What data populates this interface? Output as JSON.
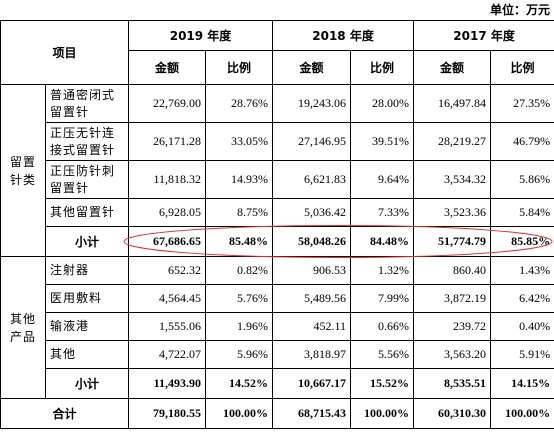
{
  "unit": "单位：万元",
  "header": {
    "item": "项目",
    "years": [
      "2019 年度",
      "2018 年度",
      "2017 年度"
    ],
    "subheaders": [
      "金额",
      "比例",
      "金额",
      "比例",
      "金额",
      "比例"
    ]
  },
  "groups": [
    {
      "label": "留置针类",
      "rows": [
        {
          "item": "普通密闭式留置针",
          "cells": [
            "22,769.00",
            "28.76%",
            "19,243.06",
            "28.00%",
            "16,497.84",
            "27.35%"
          ]
        },
        {
          "item": "正压无针连接式留置针",
          "cells": [
            "26,171.28",
            "33.05%",
            "27,146.95",
            "39.51%",
            "28,219.27",
            "46.79%"
          ]
        },
        {
          "item": "正压防针刺留置针",
          "cells": [
            "11,818.32",
            "14.93%",
            "6,621.83",
            "9.64%",
            "3,534.32",
            "5.86%"
          ]
        },
        {
          "item": "其他留置针",
          "cells": [
            "6,928.05",
            "8.75%",
            "5,036.42",
            "7.33%",
            "3,523.36",
            "5.84%"
          ]
        }
      ],
      "subtotal": {
        "label": "小计",
        "cells": [
          "67,686.65",
          "85.48%",
          "58,048.26",
          "84.48%",
          "51,774.79",
          "85.85%"
        ]
      }
    },
    {
      "label": "其他产品",
      "rows": [
        {
          "item": "注射器",
          "cells": [
            "652.32",
            "0.82%",
            "906.53",
            "1.32%",
            "860.40",
            "1.43%"
          ]
        },
        {
          "item": "医用敷料",
          "cells": [
            "4,564.45",
            "5.76%",
            "5,489.56",
            "7.99%",
            "3,872.19",
            "6.42%"
          ]
        },
        {
          "item": "输液港",
          "cells": [
            "1,555.06",
            "1.96%",
            "452.11",
            "0.66%",
            "239.72",
            "0.40%"
          ]
        },
        {
          "item": "其他",
          "cells": [
            "4,722.07",
            "5.96%",
            "3,818.97",
            "5.56%",
            "3,563.20",
            "5.91%"
          ]
        }
      ],
      "subtotal": {
        "label": "小计",
        "cells": [
          "11,493.90",
          "14.52%",
          "10,667.17",
          "15.52%",
          "8,535.51",
          "14.15%"
        ]
      }
    }
  ],
  "total": {
    "label": "合计",
    "cells": [
      "79,180.55",
      "100.00%",
      "68,715.43",
      "100.00%",
      "60,310.30",
      "100.00%"
    ]
  }
}
